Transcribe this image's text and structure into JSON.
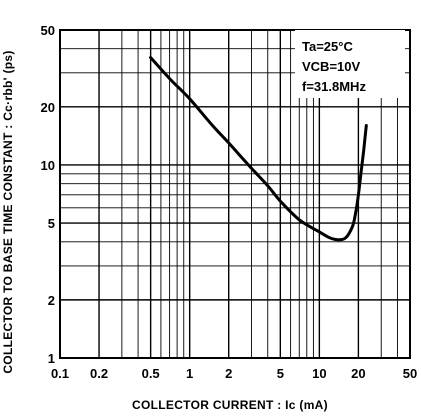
{
  "chart_data": {
    "type": "line",
    "xlabel": "COLLECTOR CURRENT : Ic (mA)",
    "ylabel": "COLLECTOR TO BASE TIME CONSTANT : Cc·rbb' (ps)",
    "xscale": "log",
    "yscale": "log",
    "xlim": [
      0.1,
      50
    ],
    "ylim": [
      1,
      50
    ],
    "xticks": [
      {
        "value": 0.1,
        "label": "0.1"
      },
      {
        "value": 0.2,
        "label": "0.2"
      },
      {
        "value": 0.5,
        "label": "0.5"
      },
      {
        "value": 1,
        "label": "1"
      },
      {
        "value": 2,
        "label": "2"
      },
      {
        "value": 5,
        "label": "5"
      },
      {
        "value": 10,
        "label": "10"
      },
      {
        "value": 20,
        "label": "20"
      },
      {
        "value": 50,
        "label": "50"
      }
    ],
    "yticks": [
      {
        "value": 1,
        "label": "1"
      },
      {
        "value": 2,
        "label": "2"
      },
      {
        "value": 5,
        "label": "5"
      },
      {
        "value": 10,
        "label": "10"
      },
      {
        "value": 20,
        "label": "20"
      },
      {
        "value": 50,
        "label": "50"
      }
    ],
    "grid": true,
    "annotations": [
      "Ta=25°C",
      "VCB=10V",
      "f=31.8MHz"
    ],
    "legend_placement": "top-right",
    "line_color": "#000000",
    "series": [
      {
        "x": [
          0.5,
          0.7,
          1,
          1.5,
          2,
          3,
          4,
          5,
          7,
          10,
          12,
          14,
          16,
          18,
          19,
          20,
          21,
          22,
          23
        ],
        "y": [
          36,
          28,
          22,
          16,
          13,
          9.6,
          7.8,
          6.5,
          5.2,
          4.5,
          4.2,
          4.1,
          4.2,
          4.8,
          5.6,
          7,
          9.2,
          12,
          16
        ]
      }
    ]
  }
}
